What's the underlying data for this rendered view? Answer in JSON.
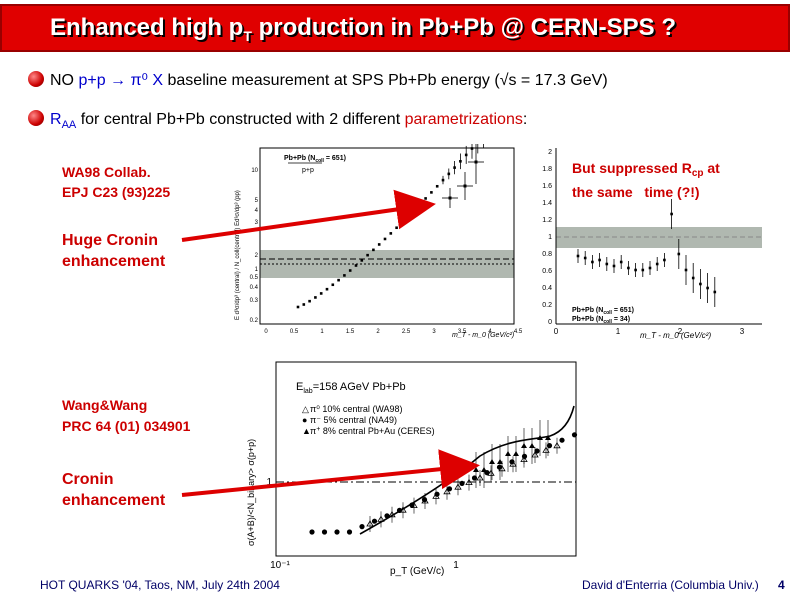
{
  "title": {
    "main": "Enhanced high p",
    "sub": "T",
    "rest": " production in Pb+Pb @ CERN-SPS ?"
  },
  "bullets": [
    {
      "a": "NO ",
      "b": "p+p → π⁰ X",
      "c": " baseline measurement at SPS Pb+Pb energy (√s = 17.3 GeV)"
    },
    {
      "a": "R",
      "a_sub": "AA",
      "b": " for central Pb+Pb constructed with 2 different ",
      "c": "parametrizations",
      "d": ":"
    }
  ],
  "labels": {
    "wa98": [
      "WA98 Collab.",
      "EPJ C23 (93)225"
    ],
    "cronin_huge": [
      "Huge Cronin",
      "enhancement"
    ],
    "rcp": [
      "But suppressed R",
      "cp",
      " at",
      "the same   time (?!)"
    ],
    "wang": [
      "Wang&Wang",
      "PRC 64 (01) 034901"
    ],
    "cronin": [
      "Cronin",
      "enhancement"
    ]
  },
  "plot1": {
    "legend": [
      "Pb+Pb (N",
      "coll",
      " = 651)",
      "p+p"
    ],
    "xlabel": "m_T - m_0 (GeV/c²)",
    "ylabel": "E d³σ/dp³ (central) / N_coll(central) Ed³σ/dp³ (pp)",
    "xticks": [
      "0",
      "0.5",
      "1",
      "1.5",
      "2",
      "2.5",
      "3",
      "3.5",
      "4",
      "4.5"
    ],
    "yticks": [
      "0.2",
      "0.3",
      "0.4",
      "0.5",
      "1",
      "2",
      "3",
      "4",
      "5",
      "10"
    ]
  },
  "plot2": {
    "legend": [
      "Pb+Pb (N",
      "coll",
      " = 651)",
      "Pb+Pb (N",
      "coll",
      " = 34)"
    ],
    "xlabel": "m_T - m_0 (GeV/c²)",
    "xticks": [
      "0",
      "1",
      "2",
      "3"
    ],
    "yticks": [
      "0",
      "0.2",
      "0.4",
      "0.6",
      "0.8",
      "1",
      "1.2",
      "1.4",
      "1.6",
      "1.8",
      "2"
    ]
  },
  "plot3": {
    "legend": [
      "E",
      "lab",
      "=158 AGeV Pb+Pb",
      "π⁰ 10% central (WA98)",
      "π⁻ 5% central (NA49)",
      "π",
      "+",
      "8% central Pb+Au (CERES)"
    ],
    "xlabel": "p_T (GeV/c)",
    "ylabel": "σ(A+B)/<N_binary> σ(p+p)",
    "xticks": [
      "10⁻¹",
      "1"
    ],
    "yticks": [
      "1"
    ]
  },
  "footer": {
    "left": "HOT QUARKS '04, Taos, NM, July 24th 2004",
    "right": "David d'Enterria (Columbia Univ.)",
    "page": "4"
  },
  "colors": {
    "title_bg": "#e00000",
    "accent_red": "#cc0000",
    "accent_blue": "#0000cc",
    "arrow": "#dd0000",
    "band": "#b0b8b0"
  }
}
